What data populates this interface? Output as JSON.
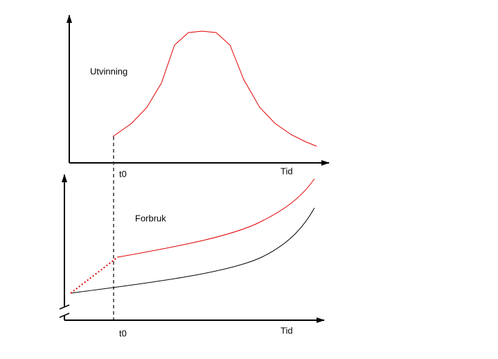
{
  "top": {
    "label": "Utvinning",
    "t0": "t0",
    "x_label": "Tid"
  },
  "bottom": {
    "label": "Forbruk",
    "t0": "t0",
    "x_label": "Tid"
  }
}
